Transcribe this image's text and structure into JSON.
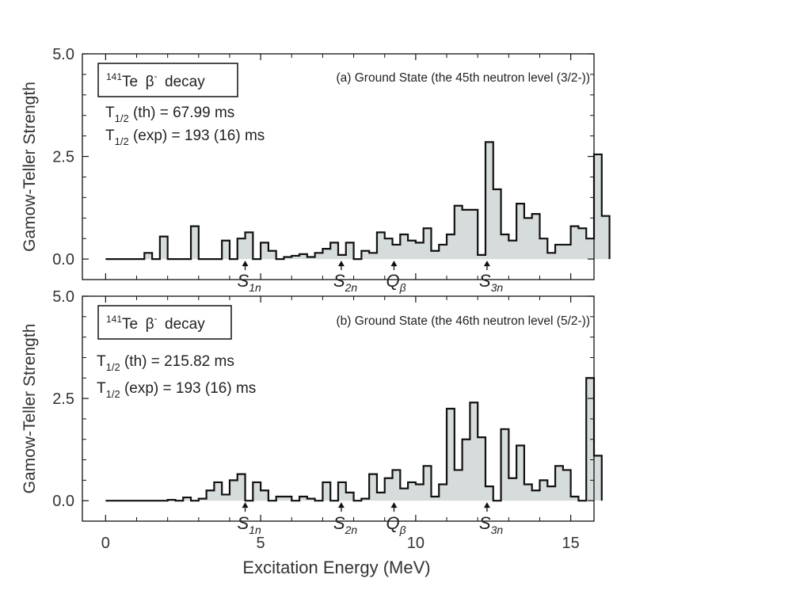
{
  "chart_data": [
    {
      "type": "bar",
      "panel_id": "a",
      "title": "(a) Ground State (the 45th neutron level (3/2-))",
      "box_label": {
        "mass": "141",
        "element": "Te",
        "decay": "β",
        "charge": "-",
        "word": "decay"
      },
      "notes": [
        {
          "prefix": "T",
          "sub": "1/2",
          "suffix": " (th) = 67.99 ms"
        },
        {
          "prefix": "T",
          "sub": "1/2",
          "suffix": " (exp) = 193 (16) ms"
        }
      ],
      "xlabel": "",
      "ylabel": "Gamow-Teller Strength",
      "xlim": [
        -0.75,
        15.75
      ],
      "ylim": [
        -0.5,
        5.0
      ],
      "yticks": [
        0.0,
        2.5,
        5.0
      ],
      "ytick_labels": [
        "0.0",
        "2.5",
        "5.0"
      ],
      "xticks": [
        0,
        5,
        10,
        15
      ],
      "xtick_labels": [],
      "bin_width": 0.25,
      "x_start": 0,
      "values": [
        0,
        0,
        0,
        0,
        0,
        0.15,
        0,
        0.55,
        0,
        0,
        0,
        0.8,
        0,
        0,
        0,
        0.45,
        0,
        0.5,
        0.65,
        0,
        0.4,
        0.2,
        0,
        0.05,
        0.08,
        0.12,
        0.05,
        0.15,
        0.25,
        0.4,
        0.1,
        0.4,
        0,
        0.2,
        0.15,
        0.65,
        0.5,
        0.35,
        0.6,
        0.45,
        0.4,
        0.75,
        0.2,
        0.35,
        0.6,
        1.3,
        1.2,
        1.2,
        0.1,
        2.85,
        1.7,
        0.6,
        0.45,
        1.35,
        1.0,
        1.1,
        0.5,
        0.15,
        0.35,
        0.35,
        0.8,
        0.75,
        0.5,
        2.55,
        1.05
      ],
      "markers": [
        {
          "main": "S",
          "sub": "1n",
          "x": 4.5
        },
        {
          "main": "S",
          "sub": "2n",
          "x": 7.6
        },
        {
          "main": "Q",
          "sub": "β",
          "x": 9.3
        },
        {
          "main": "S",
          "sub": "3n",
          "x": 12.3
        }
      ]
    },
    {
      "type": "bar",
      "panel_id": "b",
      "title": "(b) Ground State (the 46th neutron level (5/2-))",
      "box_label": {
        "mass": "141",
        "element": "Te",
        "decay": "β",
        "charge": "-",
        "word": "decay"
      },
      "notes": [
        {
          "prefix": "T",
          "sub": "1/2",
          "suffix": " (th) = 215.82 ms"
        },
        {
          "prefix": "T",
          "sub": "1/2",
          "suffix": " (exp) = 193 (16) ms"
        }
      ],
      "xlabel": "Excitation Energy (MeV)",
      "ylabel": "Gamow-Teller Strength",
      "xlim": [
        -0.75,
        15.75
      ],
      "ylim": [
        -0.5,
        5.0
      ],
      "yticks": [
        0.0,
        2.5,
        5.0
      ],
      "ytick_labels": [
        "0.0",
        "2.5",
        "5.0"
      ],
      "xticks": [
        0,
        5,
        10,
        15
      ],
      "xtick_labels": [
        "0",
        "5",
        "10",
        "15"
      ],
      "bin_width": 0.25,
      "x_start": 0,
      "values": [
        0,
        0,
        0,
        0,
        0,
        0,
        0,
        0,
        0.02,
        0,
        0.08,
        0,
        0.05,
        0.25,
        0.45,
        0.15,
        0.5,
        0.65,
        0,
        0.45,
        0.25,
        0,
        0.1,
        0.1,
        0,
        0.1,
        0.05,
        0,
        0.45,
        0,
        0.45,
        0.2,
        0,
        0.05,
        0.65,
        0.2,
        0.55,
        0.75,
        0.3,
        0.45,
        0.4,
        0.85,
        0.1,
        0.4,
        2.25,
        0.75,
        1.5,
        2.4,
        1.55,
        0.35,
        0,
        1.75,
        0.55,
        1.35,
        0.4,
        0.25,
        0.5,
        0.35,
        0.85,
        0.75,
        0.1,
        0,
        3.0,
        1.1
      ],
      "markers": [
        {
          "main": "S",
          "sub": "1n",
          "x": 4.5
        },
        {
          "main": "S",
          "sub": "2n",
          "x": 7.6
        },
        {
          "main": "Q",
          "sub": "β",
          "x": 9.3
        },
        {
          "main": "S",
          "sub": "3n",
          "x": 12.3
        }
      ]
    }
  ]
}
